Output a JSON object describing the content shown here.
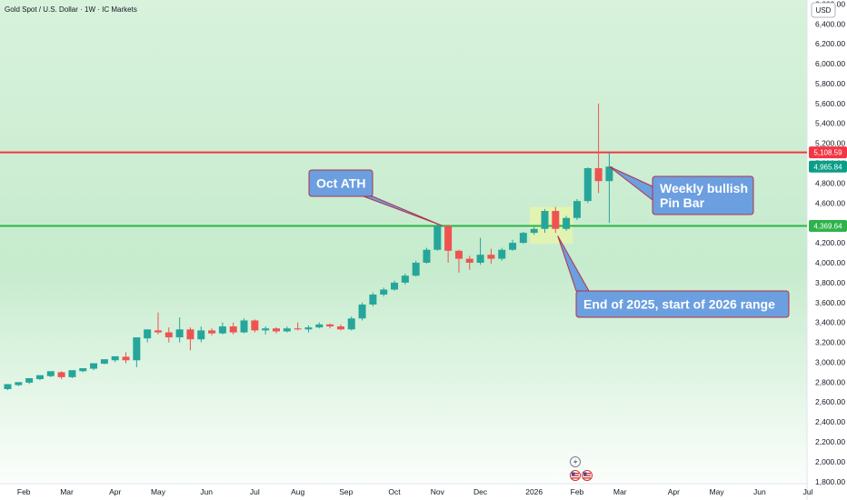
{
  "title": "Gold Spot / U.S. Dollar · 1W · IC Markets",
  "currency_button": "USD",
  "chart_data": {
    "type": "candlestick",
    "title": "Gold Spot / U.S. Dollar · 1W · IC Markets",
    "ylim": [
      1780,
      6640
    ],
    "y_ticks": [
      1800,
      2000,
      2200,
      2400,
      2600,
      2800,
      3000,
      3200,
      3400,
      3600,
      3800,
      4000,
      4200,
      4400,
      4600,
      4800,
      5000,
      5200,
      5400,
      5600,
      5800,
      6000,
      6200,
      6400,
      6600
    ],
    "y_tick_labels": [
      "1,800.00",
      "2,000.00",
      "2,200.00",
      "2,400.00",
      "2,600.00",
      "2,800.00",
      "3,000.00",
      "3,200.00",
      "3,400.00",
      "3,600.00",
      "3,800.00",
      "4,000.00",
      "4,200.00",
      "4,400.00",
      "4,600.00",
      "4,800.00",
      "5,000.00",
      "5,200.00",
      "5,400.00",
      "5,600.00",
      "5,800.00",
      "6,000.00",
      "6,200.00",
      "6,400.00",
      "6,600.00"
    ],
    "x_labels": [
      {
        "label": "Feb",
        "bar": 1.5
      },
      {
        "label": "Mar",
        "bar": 5.5
      },
      {
        "label": "Apr",
        "bar": 10
      },
      {
        "label": "May",
        "bar": 14
      },
      {
        "label": "Jun",
        "bar": 18.5
      },
      {
        "label": "Jul",
        "bar": 23
      },
      {
        "label": "Aug",
        "bar": 27
      },
      {
        "label": "Sep",
        "bar": 31.5
      },
      {
        "label": "Oct",
        "bar": 36
      },
      {
        "label": "Nov",
        "bar": 40
      },
      {
        "label": "Dec",
        "bar": 44
      },
      {
        "label": "2026",
        "bar": 49
      },
      {
        "label": "Feb",
        "bar": 53
      },
      {
        "label": "Mar",
        "bar": 57
      },
      {
        "label": "Apr",
        "bar": 62
      },
      {
        "label": "May",
        "bar": 66
      },
      {
        "label": "Jun",
        "bar": 70
      },
      {
        "label": "Jul",
        "bar": 74.5
      }
    ],
    "candles": [
      [
        2730,
        2780,
        2720,
        2770
      ],
      [
        2770,
        2800,
        2760,
        2795
      ],
      [
        2795,
        2840,
        2780,
        2830
      ],
      [
        2830,
        2870,
        2820,
        2860
      ],
      [
        2860,
        2910,
        2850,
        2900
      ],
      [
        2900,
        2850,
        2830,
        2910
      ],
      [
        2850,
        2920,
        2840,
        2910
      ],
      [
        2910,
        2940,
        2900,
        2935
      ],
      [
        2935,
        2990,
        2920,
        2985
      ],
      [
        2985,
        3030,
        2980,
        3020
      ],
      [
        3020,
        3060,
        3000,
        3055
      ],
      [
        3055,
        3020,
        2990,
        3100
      ],
      [
        3020,
        3250,
        2950,
        3240
      ],
      [
        3240,
        3330,
        3200,
        3320
      ],
      [
        3320,
        3300,
        3280,
        3500
      ],
      [
        3300,
        3250,
        3200,
        3350
      ],
      [
        3250,
        3330,
        3200,
        3450
      ],
      [
        3330,
        3230,
        3120,
        3350
      ],
      [
        3230,
        3320,
        3200,
        3360
      ],
      [
        3320,
        3290,
        3270,
        3340
      ],
      [
        3290,
        3360,
        3280,
        3400
      ],
      [
        3360,
        3300,
        3280,
        3400
      ],
      [
        3300,
        3420,
        3290,
        3440
      ],
      [
        3420,
        3320,
        3300,
        3430
      ],
      [
        3320,
        3340,
        3280,
        3360
      ],
      [
        3340,
        3310,
        3290,
        3350
      ],
      [
        3310,
        3340,
        3300,
        3360
      ],
      [
        3340,
        3330,
        3320,
        3400
      ],
      [
        3330,
        3350,
        3300,
        3370
      ],
      [
        3350,
        3380,
        3340,
        3400
      ],
      [
        3380,
        3360,
        3340,
        3390
      ],
      [
        3360,
        3330,
        3320,
        3380
      ],
      [
        3330,
        3440,
        3320,
        3460
      ],
      [
        3440,
        3580,
        3420,
        3600
      ],
      [
        3580,
        3680,
        3560,
        3700
      ],
      [
        3680,
        3730,
        3660,
        3750
      ],
      [
        3730,
        3800,
        3720,
        3820
      ],
      [
        3800,
        3870,
        3780,
        3890
      ],
      [
        3870,
        4000,
        3860,
        4020
      ],
      [
        4000,
        4130,
        3990,
        4150
      ],
      [
        4130,
        4370,
        4120,
        4390
      ],
      [
        4370,
        4120,
        4000,
        4380
      ],
      [
        4120,
        4040,
        3900,
        4130
      ],
      [
        4040,
        4000,
        3930,
        4070
      ],
      [
        4000,
        4080,
        3980,
        4250
      ],
      [
        4080,
        4040,
        3990,
        4140
      ],
      [
        4040,
        4130,
        4020,
        4150
      ],
      [
        4130,
        4200,
        4120,
        4230
      ],
      [
        4200,
        4300,
        4190,
        4310
      ],
      [
        4300,
        4340,
        4280,
        4380
      ],
      [
        4340,
        4520,
        4300,
        4540
      ],
      [
        4520,
        4340,
        4300,
        4560
      ],
      [
        4340,
        4450,
        4320,
        4470
      ],
      [
        4450,
        4620,
        4430,
        4640
      ],
      [
        4620,
        4950,
        4600,
        4960
      ],
      [
        4950,
        4820,
        4700,
        5600
      ],
      [
        4820,
        4966,
        4400,
        5100
      ]
    ],
    "levels": [
      {
        "label": "5,108.59",
        "value": 5108.59,
        "color": "#f23645"
      },
      {
        "label": "4,369.64",
        "value": 4369.64,
        "color": "#2db34a"
      }
    ],
    "last_price_label": "4,965.84",
    "last_price": 4965.84,
    "colors": {
      "up": "#26a69a",
      "down": "#ef5350",
      "resistance": "#f23645",
      "support": "#2db34a",
      "callout": "#6b9fe0"
    },
    "annotations": [
      {
        "lines": [
          "Oct ATH"
        ],
        "bar": 40.5,
        "price": 4369.64
      },
      {
        "lines": [
          "Weekly bullish",
          "Pin Bar"
        ],
        "bar": 56,
        "price": 4966
      },
      {
        "lines": [
          "End of 2025, start of 2026 range"
        ],
        "bar": 51.2,
        "price": 4270
      }
    ],
    "range_box": {
      "bar_start": 48.6,
      "bar_end": 52.6,
      "low": 4190,
      "high": 4560
    }
  }
}
